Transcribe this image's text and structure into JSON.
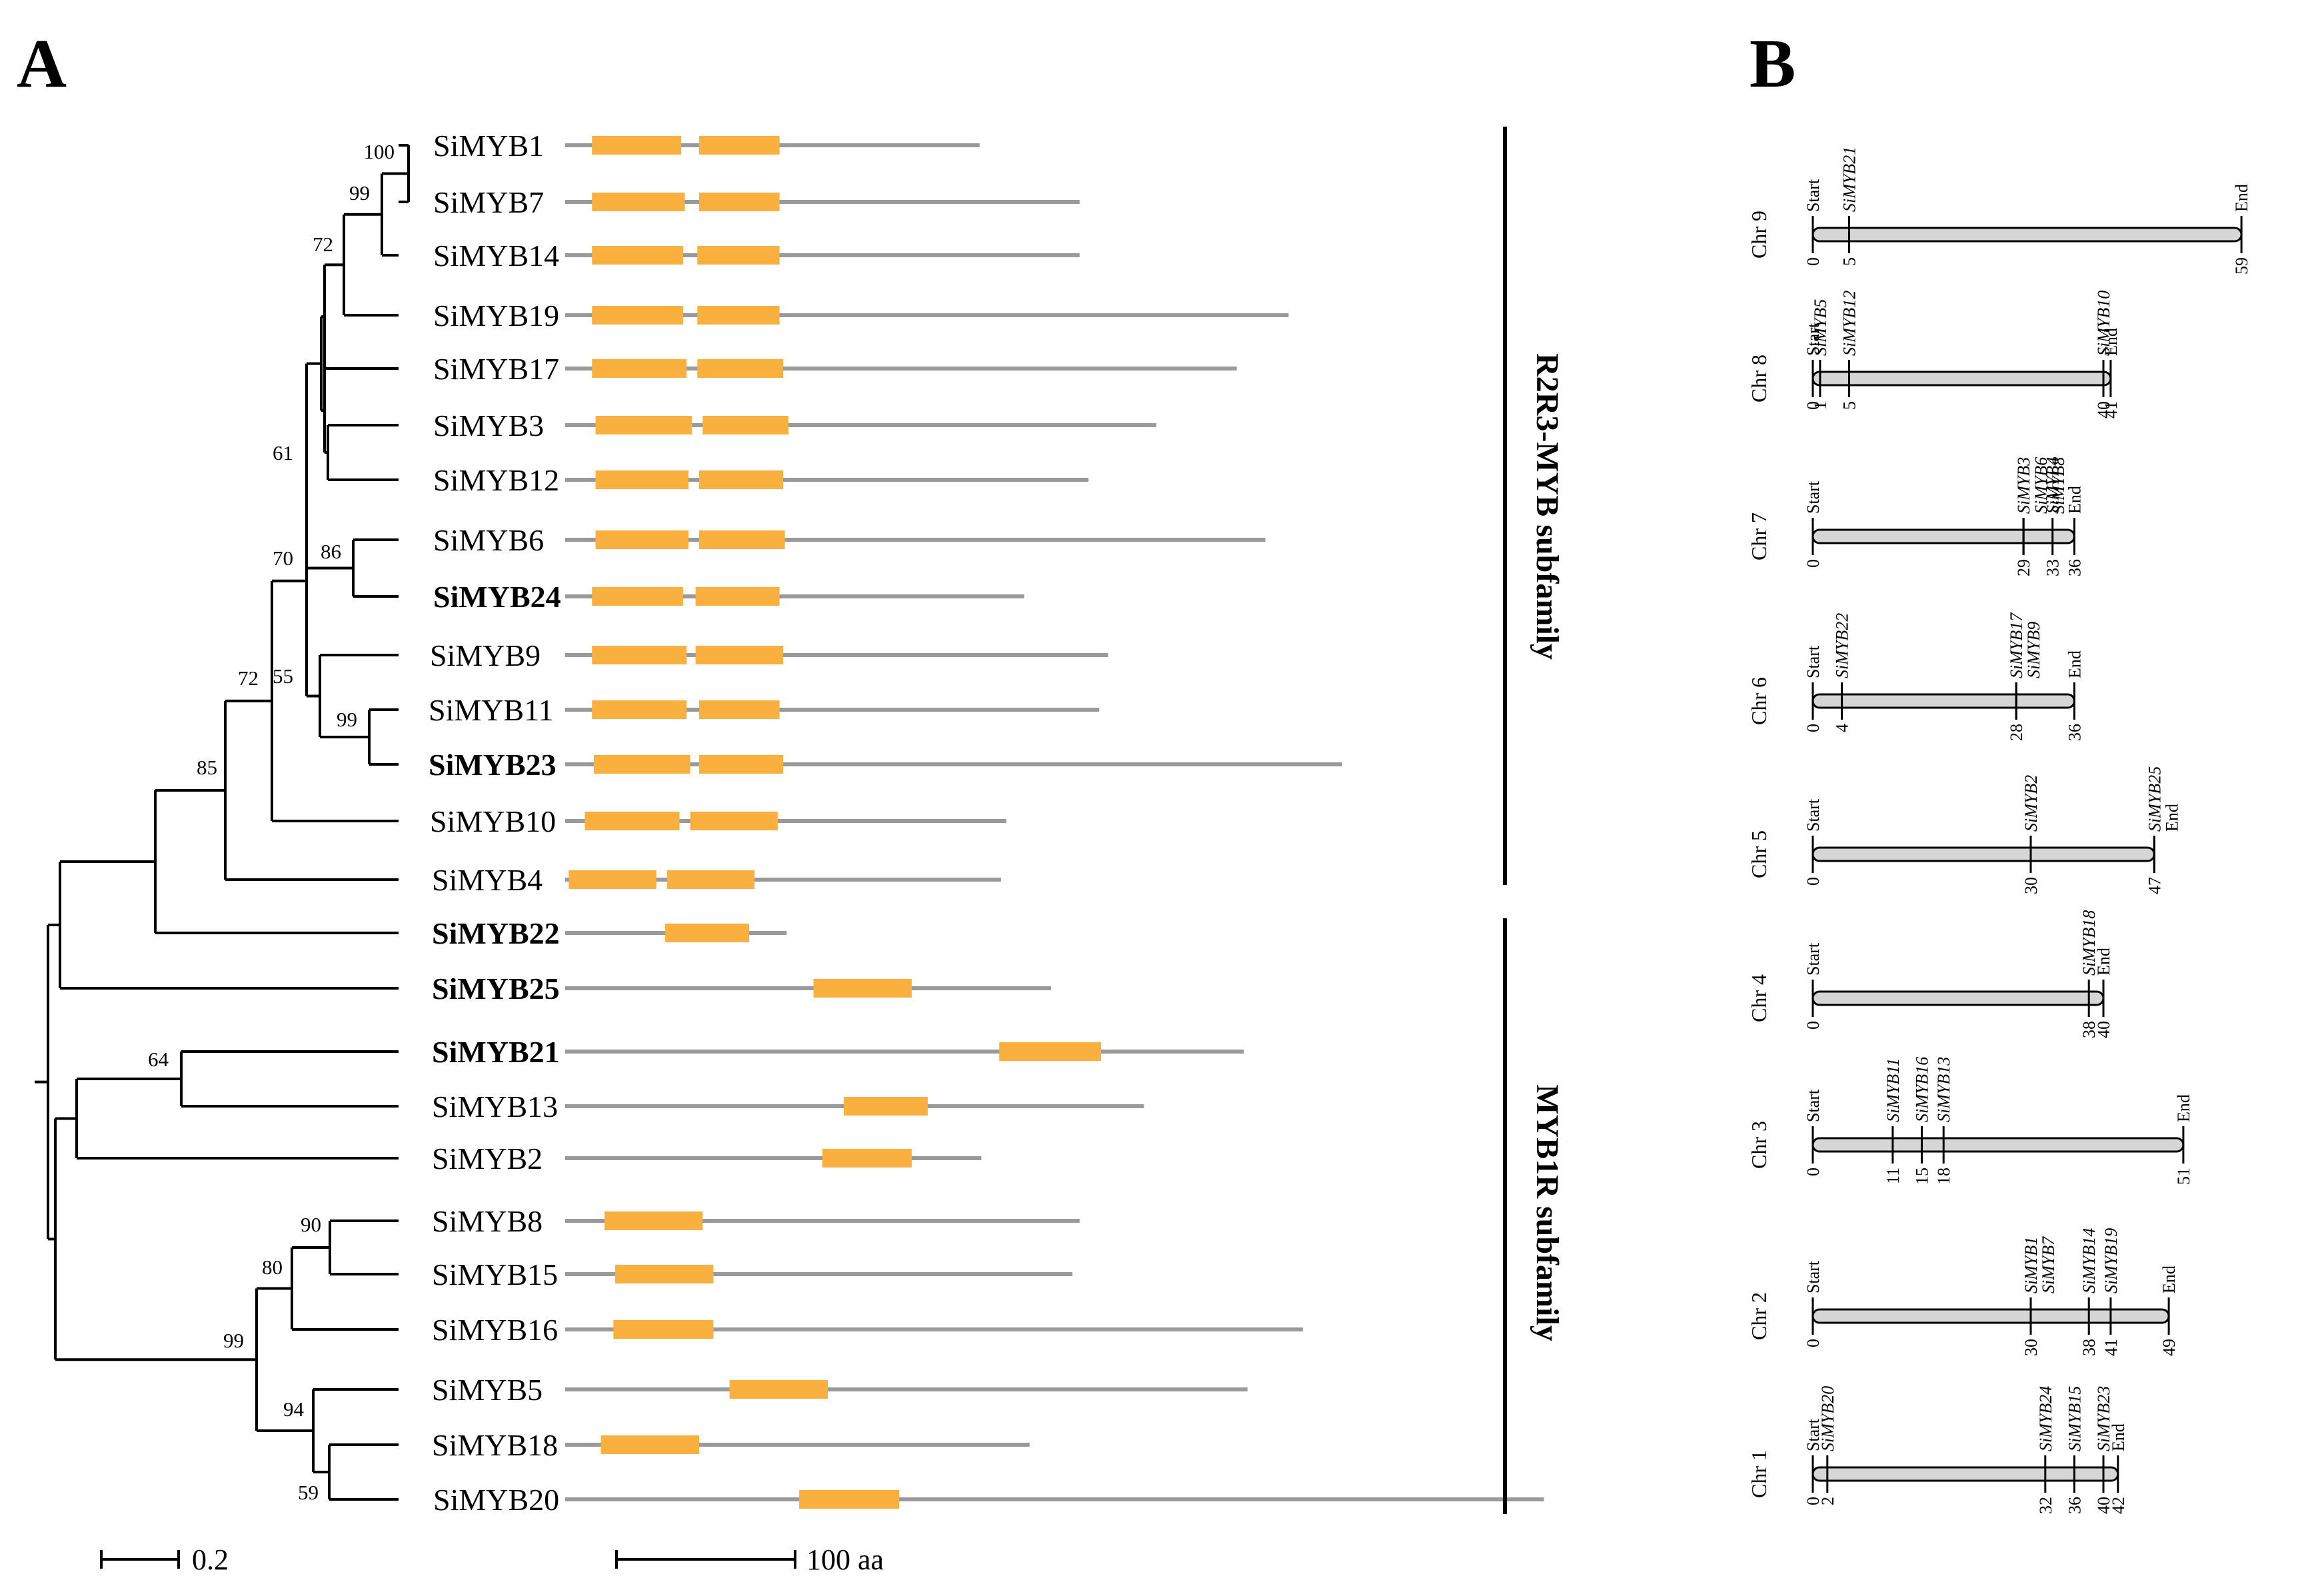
{
  "panel_a_label": "A",
  "panel_b_label": "B",
  "genes": [
    {
      "name": "SiMYB1",
      "bold": false,
      "length": 232,
      "domains": [
        [
          15,
          65
        ],
        [
          75,
          120
        ]
      ]
    },
    {
      "name": "SiMYB7",
      "bold": false,
      "length": 288,
      "domains": [
        [
          15,
          67
        ],
        [
          75,
          120
        ]
      ]
    },
    {
      "name": "SiMYB14",
      "bold": false,
      "length": 288,
      "domains": [
        [
          15,
          66
        ],
        [
          74,
          120
        ]
      ]
    },
    {
      "name": "SiMYB19",
      "bold": false,
      "length": 405,
      "domains": [
        [
          15,
          66
        ],
        [
          74,
          120
        ]
      ]
    },
    {
      "name": "SiMYB17",
      "bold": false,
      "length": 376,
      "domains": [
        [
          15,
          68
        ],
        [
          74,
          122
        ]
      ]
    },
    {
      "name": "SiMYB3",
      "bold": false,
      "length": 331,
      "domains": [
        [
          17,
          71
        ],
        [
          77,
          125
        ]
      ]
    },
    {
      "name": "SiMYB12",
      "bold": false,
      "length": 293,
      "domains": [
        [
          17,
          69
        ],
        [
          75,
          122
        ]
      ]
    },
    {
      "name": "SiMYB6",
      "bold": false,
      "length": 392,
      "domains": [
        [
          17,
          69
        ],
        [
          75,
          123
        ]
      ]
    },
    {
      "name": "SiMYB24",
      "bold": true,
      "length": 257,
      "domains": [
        [
          15,
          66
        ],
        [
          73,
          120
        ]
      ]
    },
    {
      "name": "SiMYB9",
      "bold": false,
      "length": 304,
      "domains": [
        [
          15,
          68
        ],
        [
          73,
          122
        ]
      ]
    },
    {
      "name": "SiMYB11",
      "bold": false,
      "length": 299,
      "domains": [
        [
          15,
          68
        ],
        [
          75,
          120
        ]
      ]
    },
    {
      "name": "SiMYB23",
      "bold": true,
      "length": 435,
      "domains": [
        [
          16,
          70
        ],
        [
          75,
          122
        ]
      ]
    },
    {
      "name": "SiMYB10",
      "bold": false,
      "length": 247,
      "domains": [
        [
          11,
          64
        ],
        [
          70,
          119
        ]
      ]
    },
    {
      "name": "SiMYB4",
      "bold": false,
      "length": 244,
      "domains": [
        [
          2,
          51
        ],
        [
          57,
          106
        ]
      ]
    },
    {
      "name": "SiMYB22",
      "bold": true,
      "length": 124,
      "domains": [
        [
          56,
          103
        ]
      ]
    },
    {
      "name": "SiMYB25",
      "bold": true,
      "length": 272,
      "domains": [
        [
          139,
          194
        ]
      ]
    },
    {
      "name": "SiMYB21",
      "bold": true,
      "length": 380,
      "domains": [
        [
          243,
          300
        ]
      ]
    },
    {
      "name": "SiMYB13",
      "bold": false,
      "length": 324,
      "domains": [
        [
          156,
          203
        ]
      ]
    },
    {
      "name": "SiMYB2",
      "bold": false,
      "length": 233,
      "domains": [
        [
          144,
          194
        ]
      ]
    },
    {
      "name": "SiMYB8",
      "bold": false,
      "length": 288,
      "domains": [
        [
          22,
          77
        ]
      ]
    },
    {
      "name": "SiMYB15",
      "bold": false,
      "length": 284,
      "domains": [
        [
          28,
          83
        ]
      ]
    },
    {
      "name": "SiMYB16",
      "bold": false,
      "length": 413,
      "domains": [
        [
          27,
          83
        ]
      ]
    },
    {
      "name": "SiMYB5",
      "bold": false,
      "length": 382,
      "domains": [
        [
          92,
          147
        ]
      ]
    },
    {
      "name": "SiMYB18",
      "bold": false,
      "length": 260,
      "domains": [
        [
          20,
          75
        ]
      ]
    },
    {
      "name": "SiMYB20",
      "bold": false,
      "length": 548,
      "domains": [
        [
          131,
          187
        ]
      ]
    }
  ],
  "bootstrap_values": [
    "100",
    "99",
    "72",
    "61",
    "86",
    "70",
    "55",
    "99",
    "72",
    "85",
    "64",
    "90",
    "80",
    "99",
    "94",
    "59"
  ],
  "subfamilies": {
    "r2r3": "R2R3-MYB subfamily",
    "myb1r": "MYB1R subfamily"
  },
  "scale_tree": "0.2",
  "scale_protein": "100 aa",
  "chromosomes": [
    {
      "name": "Chr 9",
      "length": 59,
      "markers": [
        {
          "pos": 0,
          "label": "Start"
        },
        {
          "pos": 5,
          "label": "SiMYB21"
        },
        {
          "pos": 59,
          "label": "End"
        }
      ]
    },
    {
      "name": "Chr 8",
      "length": 41,
      "markers": [
        {
          "pos": 0,
          "label": "Start"
        },
        {
          "pos": 1,
          "label": "SiMYB5"
        },
        {
          "pos": 5,
          "label": "SiMYB12"
        },
        {
          "pos": 40,
          "label": "SiMYB10"
        },
        {
          "pos": 41,
          "label": "End"
        }
      ]
    },
    {
      "name": "Chr 7",
      "length": 36,
      "markers": [
        {
          "pos": 0,
          "label": "Start"
        },
        {
          "pos": 29,
          "label": "SiMYB3"
        },
        {
          "pos": 29,
          "label": "SiMYB6"
        },
        {
          "pos": 29,
          "label": "SiMYB8"
        },
        {
          "pos": 33,
          "label": "SiMYB4"
        },
        {
          "pos": 36,
          "label": "End"
        }
      ]
    },
    {
      "name": "Chr 6",
      "length": 36,
      "markers": [
        {
          "pos": 0,
          "label": "Start"
        },
        {
          "pos": 4,
          "label": "SiMYB22"
        },
        {
          "pos": 28,
          "label": "SiMYB17"
        },
        {
          "pos": 28,
          "label": "SiMYB9"
        },
        {
          "pos": 36,
          "label": "End"
        }
      ]
    },
    {
      "name": "Chr 5",
      "length": 47,
      "markers": [
        {
          "pos": 0,
          "label": "Start"
        },
        {
          "pos": 30,
          "label": "SiMYB2"
        },
        {
          "pos": 47,
          "label": "SiMYB25"
        },
        {
          "pos": 47,
          "label": "End"
        }
      ]
    },
    {
      "name": "Chr 4",
      "length": 40,
      "markers": [
        {
          "pos": 0,
          "label": "Start"
        },
        {
          "pos": 38,
          "label": "SiMYB18"
        },
        {
          "pos": 40,
          "label": "End"
        }
      ]
    },
    {
      "name": "Chr 3",
      "length": 51,
      "markers": [
        {
          "pos": 0,
          "label": "Start"
        },
        {
          "pos": 11,
          "label": "SiMYB11"
        },
        {
          "pos": 15,
          "label": "SiMYB16"
        },
        {
          "pos": 18,
          "label": "SiMYB13"
        },
        {
          "pos": 51,
          "label": "End"
        }
      ]
    },
    {
      "name": "Chr 2",
      "length": 49,
      "markers": [
        {
          "pos": 0,
          "label": "Start"
        },
        {
          "pos": 30,
          "label": "SiMYB1"
        },
        {
          "pos": 30,
          "label": "SiMYB7"
        },
        {
          "pos": 38,
          "label": "SiMYB14"
        },
        {
          "pos": 41,
          "label": "SiMYB19"
        },
        {
          "pos": 49,
          "label": "End"
        }
      ]
    },
    {
      "name": "Chr 1",
      "length": 42,
      "markers": [
        {
          "pos": 0,
          "label": "Start"
        },
        {
          "pos": 2,
          "label": "SiMYB20"
        },
        {
          "pos": 32,
          "label": "SiMYB24"
        },
        {
          "pos": 36,
          "label": "SiMYB15"
        },
        {
          "pos": 40,
          "label": "SiMYB23"
        },
        {
          "pos": 42,
          "label": "End"
        }
      ]
    }
  ],
  "colors": {
    "domain": "#F9B03E",
    "protein_line": "#9A9A9A",
    "chromosome_fill": "#D6D6D6",
    "line": "#000000"
  }
}
